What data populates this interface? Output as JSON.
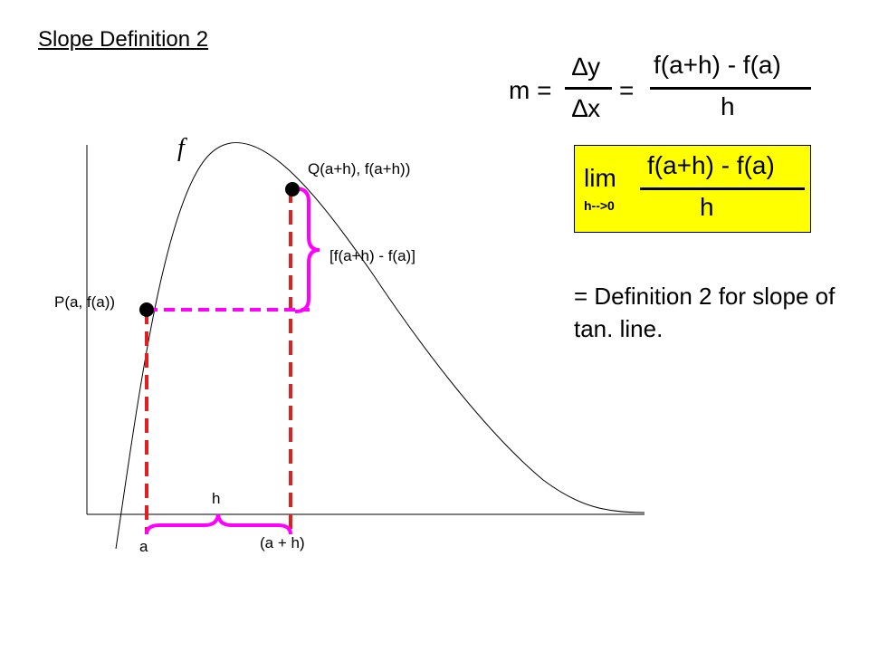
{
  "title": "Slope Definition 2",
  "slope_formula": {
    "lhs": "m =",
    "dy": "∆y",
    "dx": "∆x",
    "equals": "=",
    "numerator": "f(a+h) - f(a)",
    "denominator": "h"
  },
  "limit_box": {
    "lim": "lim",
    "subscript": "h-->0",
    "numerator": "f(a+h) - f(a)",
    "denominator": "h",
    "fill_color": "#ffff00"
  },
  "definition_note": "= Definition 2 for slope of tan. line.",
  "graph": {
    "function_label": "f",
    "point_p_label": "P(a, f(a))",
    "point_q_label": "Q(a+h), f(a+h))",
    "rise_label": "[f(a+h) - f(a)]",
    "run_label": "h",
    "x_label_a": "a",
    "x_label_a_plus_h": "(a + h)",
    "vertical_line_color": "#e02020",
    "horizontal_line_color": "#ff00ff",
    "brace_color": "#ff00ff"
  }
}
